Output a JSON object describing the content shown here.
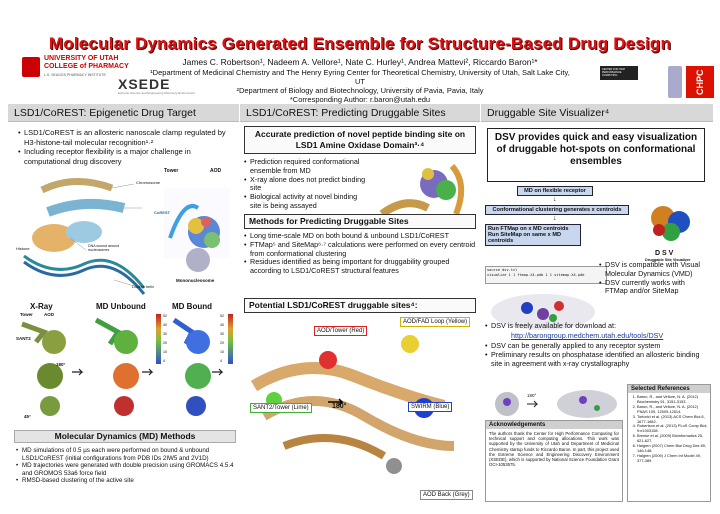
{
  "header": {
    "title": "Molecular Dynamics Generated Ensemble for Structure-Based Drug Design",
    "authors": "James C. Robertson¹, Nadeem A. Vellore¹, Nate C. Hurley¹, Andrea Mattevi², Riccardo Baron¹*",
    "affil1": "¹Department of Medicinal Chemistry and The Henry Eyring Center for Theoretical Chemistry, University of Utah, Salt Lake City, UT",
    "affil2": "²Department of Biology and Biotechnology, University of Pavia, Pavia, Italy",
    "corresponding": "*Corresponding Author: r.baron@utah.edu",
    "logo_uu": "UNIVERSITY OF UTAH",
    "logo_cop": "COLLEGE of PHARMACY",
    "logo_sub": "L.S. SKAGGS PHARMACY INSTITUTE",
    "logo_xsede": "XSEDE",
    "logo_xsede_sub": "Extreme Science and Engineering Discovery Environment",
    "logo_chpc_box": "CENTER FOR HIGH PERFORMANCE COMPUTING",
    "logo_chpc": "CHPC"
  },
  "col1": {
    "heading": "LSD1/CoREST: Epigenetic Drug Target",
    "bullets": [
      "LSD1/CoREST is an allosteric nanoscale clamp regulated by H3-histone-tail molecular recognition¹·²",
      "Including receptor flexibility is a major challenge in computational drug discovery"
    ],
    "fig_labels": {
      "chromosome": "Chromosome",
      "histone": "Histone",
      "dna": "DNA wound around nucleosomes",
      "double_helix": "Double helix",
      "tower": "Tower",
      "aod": "AOD",
      "coreast": "CoREST",
      "mononucleosome": "Mononucleosome"
    },
    "panels": {
      "xray": "X-Ray",
      "unbound": "MD Unbound",
      "bound": "MD Bound",
      "labels": [
        "Tower",
        "AOD",
        "SANT2",
        "180°",
        "45°"
      ],
      "ticks_unbound": [
        "52",
        "40",
        "30",
        "20",
        "10",
        "4"
      ],
      "ticks_bound": [
        "52",
        "40",
        "30",
        "20",
        "10",
        "4"
      ]
    },
    "md_heading": "Molecular Dynamics (MD) Methods",
    "md_bullets": [
      "MD simulations of 0.5 µs each were performed on bound & unbound LSD1/CoREST (initial configurations from PDB IDs 2IW5 and 2V1D)",
      "MD trajectories were generated with double precision using GROMACS 4.5.4 and GROMOS 53a6 force field",
      "RMSD-based clustering of the active site"
    ]
  },
  "col2": {
    "heading": "LSD1/CoREST: Predicting Druggable Sites",
    "box1": "Accurate prediction of novel peptide binding site on LSD1 Amine Oxidase Domain³·⁴",
    "bullets1": [
      "Prediction required conformational ensemble from MD",
      "X-ray alone does not predict binding site",
      "Biological activity at novel binding site is being assayed"
    ],
    "box2": "Methods for Predicting Druggable Sites",
    "bullets2": [
      "Long time-scale MD on both bound & unbound LSD1/CoREST",
      "FTMap⁵ and SiteMap⁶·⁷ calculations were performed on every centroid from conformational clustering",
      "Residues identified as being important for druggability grouped according to LSD1/CoREST structural features"
    ],
    "box3": "Potential LSD1/CoREST druggable sites⁴:",
    "sites": [
      "AOD/Tower (Red)",
      "AOD/FAD Loop (Yellow)",
      "SANT2/Tower (Lime)",
      "SWIRM (Blue)",
      "AOD Back (Grey)"
    ],
    "rot": "180°"
  },
  "col3": {
    "heading": "Druggable Site Visualizer⁴",
    "box": "DSV provides quick and easy visualization of druggable hot-spots on conformational ensembles",
    "flow": [
      "MD on flexible receptor",
      "Conformational clustering generates x centroids",
      "Run FTMap on x MD centroids",
      "Run SiteMap on same x MD centroids"
    ],
    "dsv_label": "D S V",
    "dsv_sub": "Druggable Site Visualizer",
    "code": [
      "source dsv.tcl",
      "visualize 1 1 ftmap-X4.pdb 1 1 sitemap-X4.pdb"
    ],
    "bullets_right": [
      "DSV is compatible with Visual Molecular Dynamics (VMD)",
      "DSV currently works with FTMap and/or SiteMap"
    ],
    "bullet_free": "DSV is freely available for download at:",
    "link": "http://barongroup.medchem.utah.edu/tools/DSV",
    "bullets_more": [
      "DSV can be generally applied to any receptor system",
      "Preliminary results on phosphatase identified an allosteric binding site in agreement with x-ray crystallography"
    ],
    "rot_small": "180°",
    "ack_heading": "Acknowledgements",
    "ack_text": "The authors thank the Center for High Performance Computing for technical support and computing allocations. This work was supported by the University of Utah and Department of Medicinal Chemistry startup funds to Riccardo Baron. In part, this project used the Extreme Science and Engineering Discovery Environment (XSEDE), which is supported by National Science Foundation Grant OCI-1053575.",
    "refs_heading": "Selected References",
    "refs": [
      "Baron, R., and Vellore, N. A. (2012) Biochemistry 51, 3151-3153.",
      "Baron, R., and Vellore, N. A. (2012) PNAS 109, 12509-12514.",
      "Tortorici et al. (2013) ACS Chem Biol 8, 1677-1682.",
      "Robertson et al. (2013) PLoS Comp Biol, 9:e1003158.",
      "Brenke et al. (2009) Bioinformatics 25, 621-627.",
      "Halgren (2007) Chem Biol Drug Des 69, 146-148.",
      "Halgren (2009) J Chem Inf Model 49, 377-389."
    ]
  }
}
